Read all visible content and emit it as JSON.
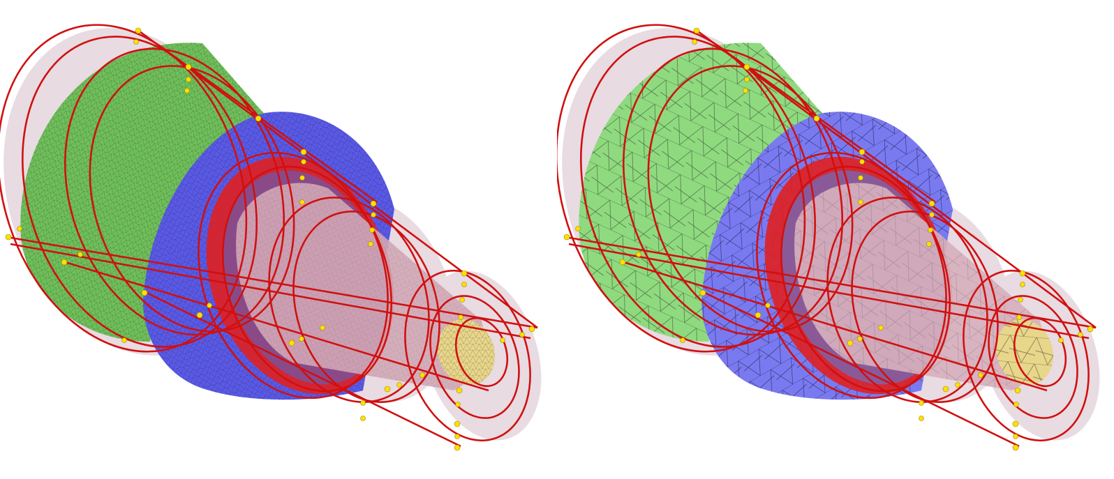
{
  "figure": {
    "panels": [
      {
        "id": "fine",
        "mesh": "fine-tetrahedral-mesh"
      },
      {
        "id": "coarse",
        "mesh": "coarse-tetrahedral-mesh"
      }
    ],
    "colors": {
      "background": "#ffffff",
      "shell_large": "#6fbf5a",
      "shell_large_coarse": "#8fda7f",
      "ring_middle": "#5a5ae6",
      "ring_middle_coarse": "#7a7af0",
      "red_band": "#e02020",
      "inner_cone": "#c9a3b0",
      "tip_cap": "#e8d68a",
      "curve": "#d01010",
      "vertex": "#ffe000",
      "shadow": "#d8c8d0",
      "mesh_line": "#1a1a1a"
    }
  }
}
